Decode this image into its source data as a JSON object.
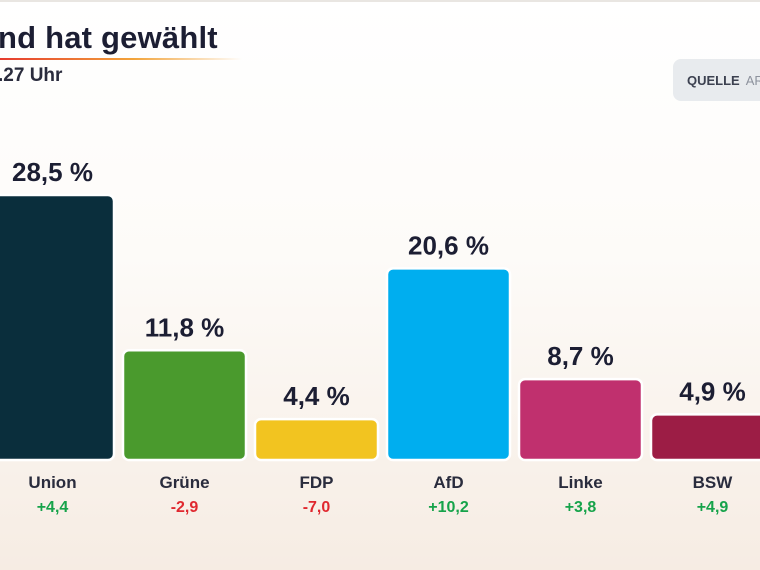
{
  "header": {
    "title": "nd hat gewählt",
    "subtitle": ".27 Uhr",
    "source_label": "QUELLE",
    "source_value": "AR"
  },
  "colors": {
    "positive": "#16a34a",
    "negative": "#e0282f"
  },
  "chart_data": {
    "type": "bar",
    "title": "",
    "xlabel": "",
    "ylabel": "",
    "unit": "%",
    "grid": false,
    "categories": [
      "Union",
      "Grüne",
      "FDP",
      "AfD",
      "Linke",
      "BSW"
    ],
    "values": [
      28.5,
      11.8,
      4.4,
      20.6,
      8.7,
      4.9
    ],
    "value_labels": [
      "28,5 %",
      "11,8 %",
      "4,4 %",
      "20,6 %",
      "8,7 %",
      "4,9 %"
    ],
    "changes": [
      "+4,4",
      "-2,9",
      "-7,0",
      "+10,2",
      "+3,8",
      "+4,9"
    ],
    "bar_colors": [
      "#0a2e3c",
      "#4a9a2d",
      "#f2c420",
      "#00aeef",
      "#c0306e",
      "#9c1d45"
    ]
  }
}
